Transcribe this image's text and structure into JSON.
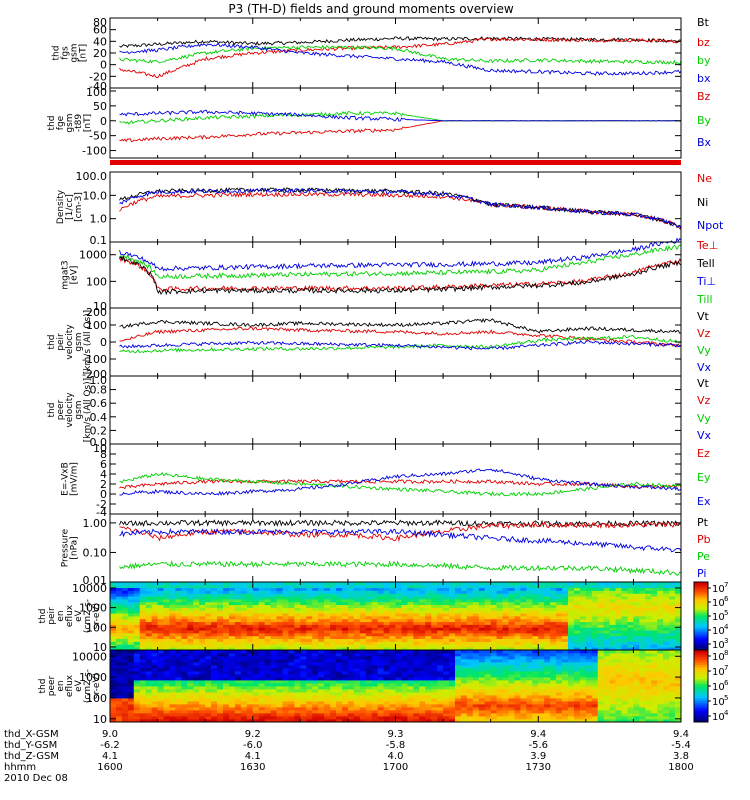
{
  "title": "P3 (TH-D) fields and ground moments overview",
  "date": "2010 Dec 08",
  "time_axis": {
    "tick_times": [
      "1600",
      "1630",
      "1700",
      "1730",
      "1800"
    ],
    "ephemeris": [
      {
        "label": "thd_X-GSM",
        "values": [
          "9.0",
          "9.2",
          "9.3",
          "9.4",
          "9.4"
        ]
      },
      {
        "label": "thd_Y-GSM",
        "values": [
          "-6.2",
          "-6.0",
          "-5.8",
          "-5.6",
          "-5.4"
        ]
      },
      {
        "label": "thd_Z-GSM",
        "values": [
          "4.1",
          "4.1",
          "4.0",
          "3.9",
          "3.8"
        ]
      },
      {
        "label": "hhmm",
        "values": [
          "1600",
          "1630",
          "1700",
          "1730",
          "1800"
        ]
      }
    ]
  },
  "colors": {
    "black": "#000000",
    "red": "#e00000",
    "green": "#00d000",
    "blue": "#0000e0"
  },
  "chart_data": [
    {
      "type": "line",
      "id": "fgs",
      "ylabel_lines": [
        "thd",
        "fgs",
        "gsm",
        "[nT]"
      ],
      "ylim": [
        -40,
        80
      ],
      "yscale": "linear",
      "ticks": [
        -40,
        -20,
        0,
        20,
        40,
        60,
        80
      ],
      "tick_labels": [
        "-40",
        "-20",
        "0",
        "20",
        "40",
        "60",
        "80"
      ],
      "x": [
        "16:00",
        "16:10",
        "16:20",
        "16:30",
        "16:40",
        "16:50",
        "17:00",
        "17:10",
        "17:20",
        "17:30",
        "17:40",
        "17:50",
        "18:00"
      ],
      "series": [
        {
          "name": "Bt",
          "color": "#000000",
          "values": [
            30,
            35,
            40,
            36,
            38,
            42,
            45,
            44,
            45,
            44,
            43,
            43,
            40
          ]
        },
        {
          "name": "bz",
          "color": "#e00000",
          "values": [
            -5,
            -20,
            10,
            20,
            25,
            28,
            30,
            35,
            44,
            43,
            42,
            42,
            40
          ]
        },
        {
          "name": "by",
          "color": "#00d000",
          "values": [
            10,
            5,
            20,
            28,
            30,
            30,
            28,
            10,
            6,
            8,
            6,
            5,
            4
          ]
        },
        {
          "name": "bx",
          "color": "#0000e0",
          "values": [
            20,
            25,
            35,
            30,
            20,
            15,
            10,
            5,
            -10,
            -12,
            -15,
            -15,
            -12
          ]
        }
      ]
    },
    {
      "type": "line",
      "id": "fge-t89",
      "ylabel_lines": [
        "thd",
        "fge",
        "gsm",
        "-t89",
        "[nT]"
      ],
      "ylim": [
        -125,
        110
      ],
      "yscale": "linear",
      "ticks": [
        -100,
        -50,
        0,
        50,
        100
      ],
      "tick_labels": [
        "-100",
        "-50",
        "0",
        "50",
        "100"
      ],
      "x": [
        "16:00",
        "16:10",
        "16:20",
        "16:30",
        "16:40",
        "16:50",
        "17:00",
        "17:10",
        "17:20",
        "17:30",
        "17:40",
        "17:50",
        "18:00"
      ],
      "series": [
        {
          "name": "Bz",
          "color": "#e00000",
          "values": [
            -70,
            -60,
            -55,
            -45,
            -40,
            -35,
            -30,
            0,
            0,
            0,
            0,
            0,
            0
          ]
        },
        {
          "name": "By",
          "color": "#00d000",
          "values": [
            -10,
            0,
            10,
            15,
            20,
            25,
            25,
            0,
            0,
            0,
            0,
            0,
            0
          ]
        },
        {
          "name": "Bx",
          "color": "#0000e0",
          "values": [
            20,
            25,
            30,
            25,
            20,
            10,
            5,
            0,
            0,
            0,
            0,
            0,
            0
          ]
        }
      ]
    },
    {
      "type": "line",
      "id": "density",
      "ylabel_lines": [
        "Density",
        "[1/cc]",
        "[cm-3]"
      ],
      "ylim": [
        0.1,
        100
      ],
      "yscale": "log",
      "ticks": [
        0.1,
        1,
        10,
        100
      ],
      "tick_labels": [
        "0.1",
        "1.0",
        "10.0",
        "100.0"
      ],
      "x": [
        "16:00",
        "16:10",
        "16:20",
        "16:30",
        "16:40",
        "16:50",
        "17:00",
        "17:10",
        "17:20",
        "17:30",
        "17:40",
        "17:50",
        "18:00"
      ],
      "series": [
        {
          "name": "Ne",
          "color": "#e00000",
          "values": [
            0.6,
            9,
            10,
            11,
            11,
            11,
            10,
            9,
            4,
            3,
            2,
            1.5,
            0.4
          ]
        },
        {
          "name": "Ni",
          "color": "#000000",
          "values": [
            4,
            15,
            16,
            17,
            17,
            16,
            15,
            12,
            4,
            3,
            2,
            1.5,
            0.4
          ]
        },
        {
          "name": "Npot",
          "color": "#0000e0",
          "values": [
            2,
            14,
            15,
            16,
            16,
            15,
            14,
            11,
            4,
            3,
            2,
            1.5,
            0.4
          ]
        }
      ]
    },
    {
      "type": "line",
      "id": "temperature",
      "ylabel_lines": [
        "mgat3",
        "[eV]"
      ],
      "ylim": [
        10,
        3000
      ],
      "yscale": "log",
      "ticks": [
        10,
        100,
        1000
      ],
      "tick_labels": [
        "10",
        "100",
        "1000"
      ],
      "x": [
        "16:00",
        "16:10",
        "16:20",
        "16:30",
        "16:40",
        "16:50",
        "17:00",
        "17:10",
        "17:20",
        "17:30",
        "17:40",
        "17:50",
        "18:00"
      ],
      "series": [
        {
          "name": "Te⊥",
          "color": "#e00000",
          "values": [
            900,
            50,
            55,
            55,
            55,
            55,
            55,
            60,
            70,
            80,
            100,
            200,
            600
          ]
        },
        {
          "name": "Tell",
          "color": "#000000",
          "values": [
            1000,
            40,
            45,
            45,
            45,
            45,
            45,
            50,
            60,
            70,
            90,
            180,
            500
          ]
        },
        {
          "name": "Ti⊥",
          "color": "#0000e0",
          "values": [
            1500,
            300,
            320,
            350,
            380,
            400,
            420,
            430,
            460,
            500,
            800,
            1500,
            3500
          ]
        },
        {
          "name": "Till",
          "color": "#00d000",
          "values": [
            1200,
            150,
            160,
            170,
            180,
            190,
            200,
            210,
            230,
            260,
            500,
            1000,
            2000
          ]
        }
      ]
    },
    {
      "type": "line",
      "id": "peir-velocity",
      "ylabel_lines": [
        "thd",
        "peir",
        "velocity",
        "gsm",
        "[km/s (All Qs)]"
      ],
      "ylim": [
        -200,
        200
      ],
      "yscale": "linear",
      "ticks": [
        -200,
        -100,
        0,
        100,
        200
      ],
      "tick_labels": [
        "-200",
        "-100",
        "0",
        "100",
        "200"
      ],
      "x": [
        "16:00",
        "16:10",
        "16:20",
        "16:30",
        "16:40",
        "16:50",
        "17:00",
        "17:10",
        "17:20",
        "17:30",
        "17:40",
        "17:50",
        "18:00"
      ],
      "series": [
        {
          "name": "Vt",
          "color": "#000000",
          "values": [
            80,
            120,
            110,
            100,
            110,
            105,
            100,
            110,
            130,
            60,
            80,
            70,
            60
          ]
        },
        {
          "name": "Vz",
          "color": "#e00000",
          "values": [
            -10,
            60,
            70,
            80,
            70,
            65,
            60,
            50,
            60,
            40,
            20,
            0,
            -20
          ]
        },
        {
          "name": "Vy",
          "color": "#00d000",
          "values": [
            -60,
            -50,
            -45,
            -40,
            -40,
            -35,
            -30,
            -20,
            -30,
            10,
            20,
            30,
            0
          ]
        },
        {
          "name": "Vx",
          "color": "#0000e0",
          "values": [
            -30,
            -20,
            -10,
            -5,
            -10,
            -15,
            -20,
            -30,
            -40,
            -20,
            0,
            -10,
            -20
          ]
        }
      ]
    },
    {
      "type": "line",
      "id": "peer-velocity",
      "ylabel_lines": [
        "thd",
        "peer",
        "velocity",
        "gsm",
        "[km/s (All Qs)]"
      ],
      "ylim": [
        0,
        1
      ],
      "yscale": "linear",
      "ticks": [
        0,
        0.2,
        0.4,
        0.6,
        0.8,
        1.0
      ],
      "tick_labels": [
        "0.0",
        "0.2",
        "0.4",
        "0.6",
        "0.8",
        "1.0"
      ],
      "x": [],
      "series": [
        {
          "name": "Vt",
          "color": "#000000",
          "values": []
        },
        {
          "name": "Vz",
          "color": "#e00000",
          "values": []
        },
        {
          "name": "Vy",
          "color": "#00d000",
          "values": []
        },
        {
          "name": "Vx",
          "color": "#0000e0",
          "values": []
        }
      ]
    },
    {
      "type": "line",
      "id": "e-field",
      "ylabel_lines": [
        "E=-VxB",
        "[mV/m]"
      ],
      "ylim": [
        -4,
        10
      ],
      "yscale": "linear",
      "ticks": [
        -4,
        -2,
        0,
        2,
        4,
        6,
        8,
        10
      ],
      "tick_labels": [
        "-4",
        "-2",
        "0",
        "2",
        "4",
        "6",
        "8",
        "10"
      ],
      "x": [
        "16:00",
        "16:10",
        "16:20",
        "16:30",
        "16:40",
        "16:50",
        "17:00",
        "17:10",
        "17:20",
        "17:30",
        "17:40",
        "17:50",
        "18:00"
      ],
      "series": [
        {
          "name": "Ez",
          "color": "#e00000",
          "values": [
            1,
            2,
            2.5,
            2.5,
            2.5,
            2.5,
            2.5,
            2.5,
            2.5,
            2,
            2,
            1.5,
            1.5
          ]
        },
        {
          "name": "Ey",
          "color": "#00d000",
          "values": [
            2,
            4,
            3,
            2.5,
            2,
            1.5,
            1,
            0.5,
            0,
            0,
            1,
            2,
            1.5
          ]
        },
        {
          "name": "Ex",
          "color": "#0000e0",
          "values": [
            0,
            0.5,
            0,
            0.5,
            1,
            2,
            3.5,
            4,
            5,
            3,
            2,
            1.5,
            1
          ]
        }
      ]
    },
    {
      "type": "line",
      "id": "pressure",
      "ylabel_lines": [
        "Pressure",
        "[nPa]"
      ],
      "ylim": [
        0.01,
        2
      ],
      "yscale": "log",
      "ticks": [
        0.01,
        0.1,
        1
      ],
      "tick_labels": [
        "0.01",
        "0.10",
        "1.00"
      ],
      "x": [
        "16:00",
        "16:10",
        "16:20",
        "16:30",
        "16:40",
        "16:50",
        "17:00",
        "17:10",
        "17:20",
        "17:30",
        "17:40",
        "17:50",
        "18:00"
      ],
      "series": [
        {
          "name": "Pt",
          "color": "#000000",
          "values": [
            0.9,
            1.0,
            1.0,
            1.0,
            1.0,
            1.0,
            1.0,
            1.0,
            0.95,
            0.95,
            0.95,
            0.95,
            0.95
          ]
        },
        {
          "name": "Pb",
          "color": "#e00000",
          "values": [
            0.8,
            0.3,
            0.5,
            0.5,
            0.4,
            0.4,
            0.3,
            0.5,
            0.8,
            0.85,
            0.85,
            0.85,
            0.9
          ]
        },
        {
          "name": "Pe",
          "color": "#00d000",
          "values": [
            0.03,
            0.04,
            0.04,
            0.04,
            0.04,
            0.04,
            0.04,
            0.035,
            0.03,
            0.03,
            0.03,
            0.025,
            0.02
          ]
        },
        {
          "name": "Pi",
          "color": "#0000e0",
          "values": [
            0.4,
            0.5,
            0.5,
            0.5,
            0.5,
            0.5,
            0.5,
            0.4,
            0.3,
            0.25,
            0.2,
            0.15,
            0.12
          ]
        }
      ]
    },
    {
      "type": "heatmap",
      "id": "peir-eflux",
      "ylabel_lines": [
        "thd",
        "peir",
        "en",
        "eflux",
        "eV",
        "(cm2-s-",
        "sr-eV)"
      ],
      "ylim": [
        7,
        20000
      ],
      "yscale": "log",
      "ticks": [
        10,
        100,
        1000,
        10000
      ],
      "tick_labels": [
        "10",
        "100",
        "1000",
        "10000"
      ],
      "colorbar_exponents": [
        "3",
        "4",
        "5",
        "6",
        "7"
      ],
      "colorbar_range": [
        1000,
        10000000
      ]
    },
    {
      "type": "heatmap",
      "id": "peer-eflux",
      "ylabel_lines": [
        "thd",
        "peer",
        "en",
        "eflux",
        "eV",
        "(cm2-s-",
        "sr-eV)"
      ],
      "ylim": [
        7,
        20000
      ],
      "yscale": "log",
      "ticks": [
        10,
        100,
        1000,
        10000
      ],
      "tick_labels": [
        "10",
        "100",
        "1000",
        "10000"
      ],
      "colorbar_exponents": [
        "4",
        "5",
        "6",
        "7",
        "8"
      ],
      "colorbar_range": [
        10000,
        100000000
      ]
    }
  ]
}
